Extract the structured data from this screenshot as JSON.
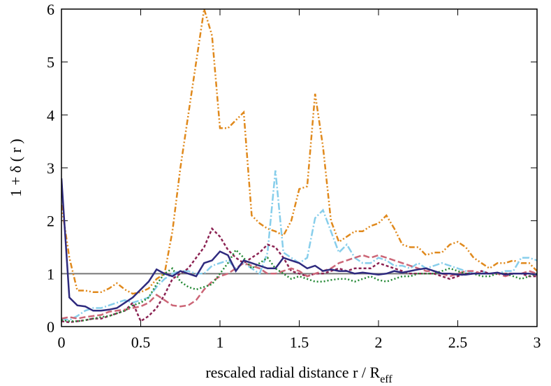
{
  "chart_data": {
    "type": "line",
    "x_label": "rescaled radial distance  r / R",
    "x_label_subscript": "eff",
    "y_label": "1 + δ ( r )",
    "x": [
      0,
      0.05,
      0.1,
      0.15,
      0.2,
      0.25,
      0.3,
      0.35,
      0.4,
      0.45,
      0.5,
      0.55,
      0.6,
      0.65,
      0.7,
      0.75,
      0.8,
      0.85,
      0.9,
      0.95,
      1,
      1.05,
      1.1,
      1.15,
      1.2,
      1.25,
      1.3,
      1.35,
      1.4,
      1.45,
      1.5,
      1.55,
      1.6,
      1.65,
      1.7,
      1.75,
      1.8,
      1.85,
      1.9,
      1.95,
      2,
      2.05,
      2.1,
      2.15,
      2.2,
      2.25,
      2.3,
      2.35,
      2.4,
      2.45,
      2.5,
      2.55,
      2.6,
      2.65,
      2.7,
      2.75,
      2.8,
      2.85,
      2.9,
      2.95,
      3
    ],
    "series": [
      {
        "color": "#e0891c",
        "dash": "8,3,2,3,2,3",
        "values": [
          2.3,
          1.3,
          0.68,
          0.68,
          0.65,
          0.65,
          0.72,
          0.82,
          0.7,
          0.62,
          0.65,
          0.72,
          0.9,
          1.0,
          1.8,
          3.0,
          4.0,
          5.0,
          6.0,
          5.5,
          3.75,
          3.75,
          3.9,
          4.05,
          2.1,
          1.95,
          1.85,
          1.8,
          1.72,
          2.0,
          2.6,
          2.65,
          4.4,
          3.4,
          2.0,
          1.6,
          1.7,
          1.8,
          1.8,
          1.9,
          1.95,
          2.1,
          1.85,
          1.55,
          1.5,
          1.5,
          1.35,
          1.4,
          1.4,
          1.55,
          1.6,
          1.5,
          1.3,
          1.2,
          1.1,
          1.2,
          1.2,
          1.25,
          1.2,
          1.2,
          1.05
        ]
      },
      {
        "color": "#87ceeb",
        "dash": "10,3,2,3",
        "values": [
          0.15,
          0.12,
          0.2,
          0.3,
          0.35,
          0.35,
          0.4,
          0.45,
          0.5,
          0.45,
          0.5,
          0.55,
          0.75,
          0.9,
          1.0,
          1.05,
          1.05,
          1.0,
          1.0,
          1.15,
          1.2,
          1.25,
          1.1,
          1.2,
          1.1,
          1.0,
          1.4,
          2.95,
          1.4,
          1.3,
          1.2,
          1.3,
          2.05,
          2.2,
          1.8,
          1.4,
          1.55,
          1.3,
          1.2,
          1.2,
          1.3,
          1.25,
          1.15,
          1.15,
          1.1,
          1.2,
          1.1,
          1.15,
          1.2,
          1.15,
          1.1,
          1.05,
          1.0,
          1.05,
          1.0,
          1.0,
          1.05,
          1.05,
          1.3,
          1.3,
          1.25
        ]
      },
      {
        "color": "#8b2252",
        "dash": "4,3",
        "values": [
          0.1,
          0.08,
          0.1,
          0.12,
          0.15,
          0.15,
          0.2,
          0.25,
          0.3,
          0.45,
          0.1,
          0.2,
          0.35,
          0.6,
          0.9,
          1.0,
          1.1,
          1.3,
          1.5,
          1.85,
          1.7,
          1.45,
          1.3,
          1.2,
          1.3,
          1.4,
          1.55,
          1.5,
          1.3,
          1.05,
          1.0,
          0.95,
          1.0,
          1.0,
          1.05,
          1.1,
          1.05,
          1.1,
          1.1,
          1.1,
          1.2,
          1.15,
          1.1,
          1.05,
          1.0,
          1.0,
          1.0,
          1.0,
          0.95,
          0.9,
          0.95,
          1.0,
          1.0,
          1.05,
          1.0,
          1.0,
          1.0,
          1.0,
          1.0,
          0.95,
          0.95
        ]
      },
      {
        "color": "#cc6677",
        "dash": "9,4",
        "values": [
          0.15,
          0.18,
          0.15,
          0.18,
          0.2,
          0.22,
          0.28,
          0.3,
          0.32,
          0.35,
          0.38,
          0.45,
          0.6,
          0.5,
          0.4,
          0.38,
          0.4,
          0.5,
          0.7,
          0.85,
          0.95,
          1.0,
          1.1,
          1.2,
          1.15,
          1.1,
          1.0,
          1.0,
          1.05,
          1.1,
          1.05,
          0.95,
          1.0,
          1.05,
          1.1,
          1.2,
          1.25,
          1.3,
          1.35,
          1.3,
          1.35,
          1.3,
          1.25,
          1.2,
          1.15,
          1.1,
          1.05,
          1.05,
          1.0,
          0.95,
          1.0,
          1.05,
          1.05,
          1.0,
          1.0,
          1.0,
          0.95,
          1.0,
          1.0,
          1.05,
          1.0
        ]
      },
      {
        "color": "#228833",
        "dash": "2,3",
        "values": [
          0.12,
          0.1,
          0.1,
          0.12,
          0.15,
          0.18,
          0.2,
          0.25,
          0.3,
          0.4,
          0.45,
          0.55,
          0.8,
          1.0,
          1.1,
          0.85,
          0.75,
          0.7,
          0.75,
          0.8,
          1.0,
          1.2,
          1.45,
          1.3,
          1.1,
          1.2,
          1.3,
          1.1,
          1.0,
          0.9,
          0.95,
          0.9,
          0.85,
          0.85,
          0.88,
          0.9,
          0.9,
          0.85,
          0.9,
          0.95,
          0.88,
          0.85,
          0.9,
          0.95,
          0.95,
          1.0,
          1.0,
          1.0,
          1.05,
          1.1,
          1.05,
          1.0,
          1.0,
          0.95,
          0.95,
          1.0,
          1.0,
          0.95,
          0.9,
          0.95,
          1.0
        ]
      },
      {
        "color": "#2e2a7e",
        "dash": "",
        "values": [
          2.8,
          0.55,
          0.4,
          0.38,
          0.3,
          0.3,
          0.32,
          0.35,
          0.45,
          0.55,
          0.7,
          0.85,
          1.08,
          1.0,
          0.95,
          1.05,
          1.0,
          0.95,
          1.2,
          1.25,
          1.42,
          1.35,
          1.05,
          1.25,
          1.2,
          1.15,
          1.1,
          1.1,
          1.3,
          1.25,
          1.2,
          1.1,
          1.15,
          1.05,
          1.08,
          1.05,
          1.05,
          1.0,
          1.02,
          1.0,
          0.98,
          1.0,
          1.05,
          1.02,
          1.05,
          1.08,
          1.1,
          1.05,
          1.0,
          1.0,
          0.98,
          0.98,
          1.0,
          1.0,
          1.0,
          1.02,
          0.98,
          1.0,
          1.0,
          1.0,
          0.98
        ]
      }
    ],
    "hline": 1,
    "hline_color": "#777777",
    "xlim": [
      0,
      3
    ],
    "xticks": [
      0,
      0.5,
      1,
      1.5,
      2,
      2.5,
      3
    ],
    "ylim": [
      0,
      6
    ],
    "yticks": [
      0,
      1,
      2,
      3,
      4,
      5,
      6
    ]
  }
}
